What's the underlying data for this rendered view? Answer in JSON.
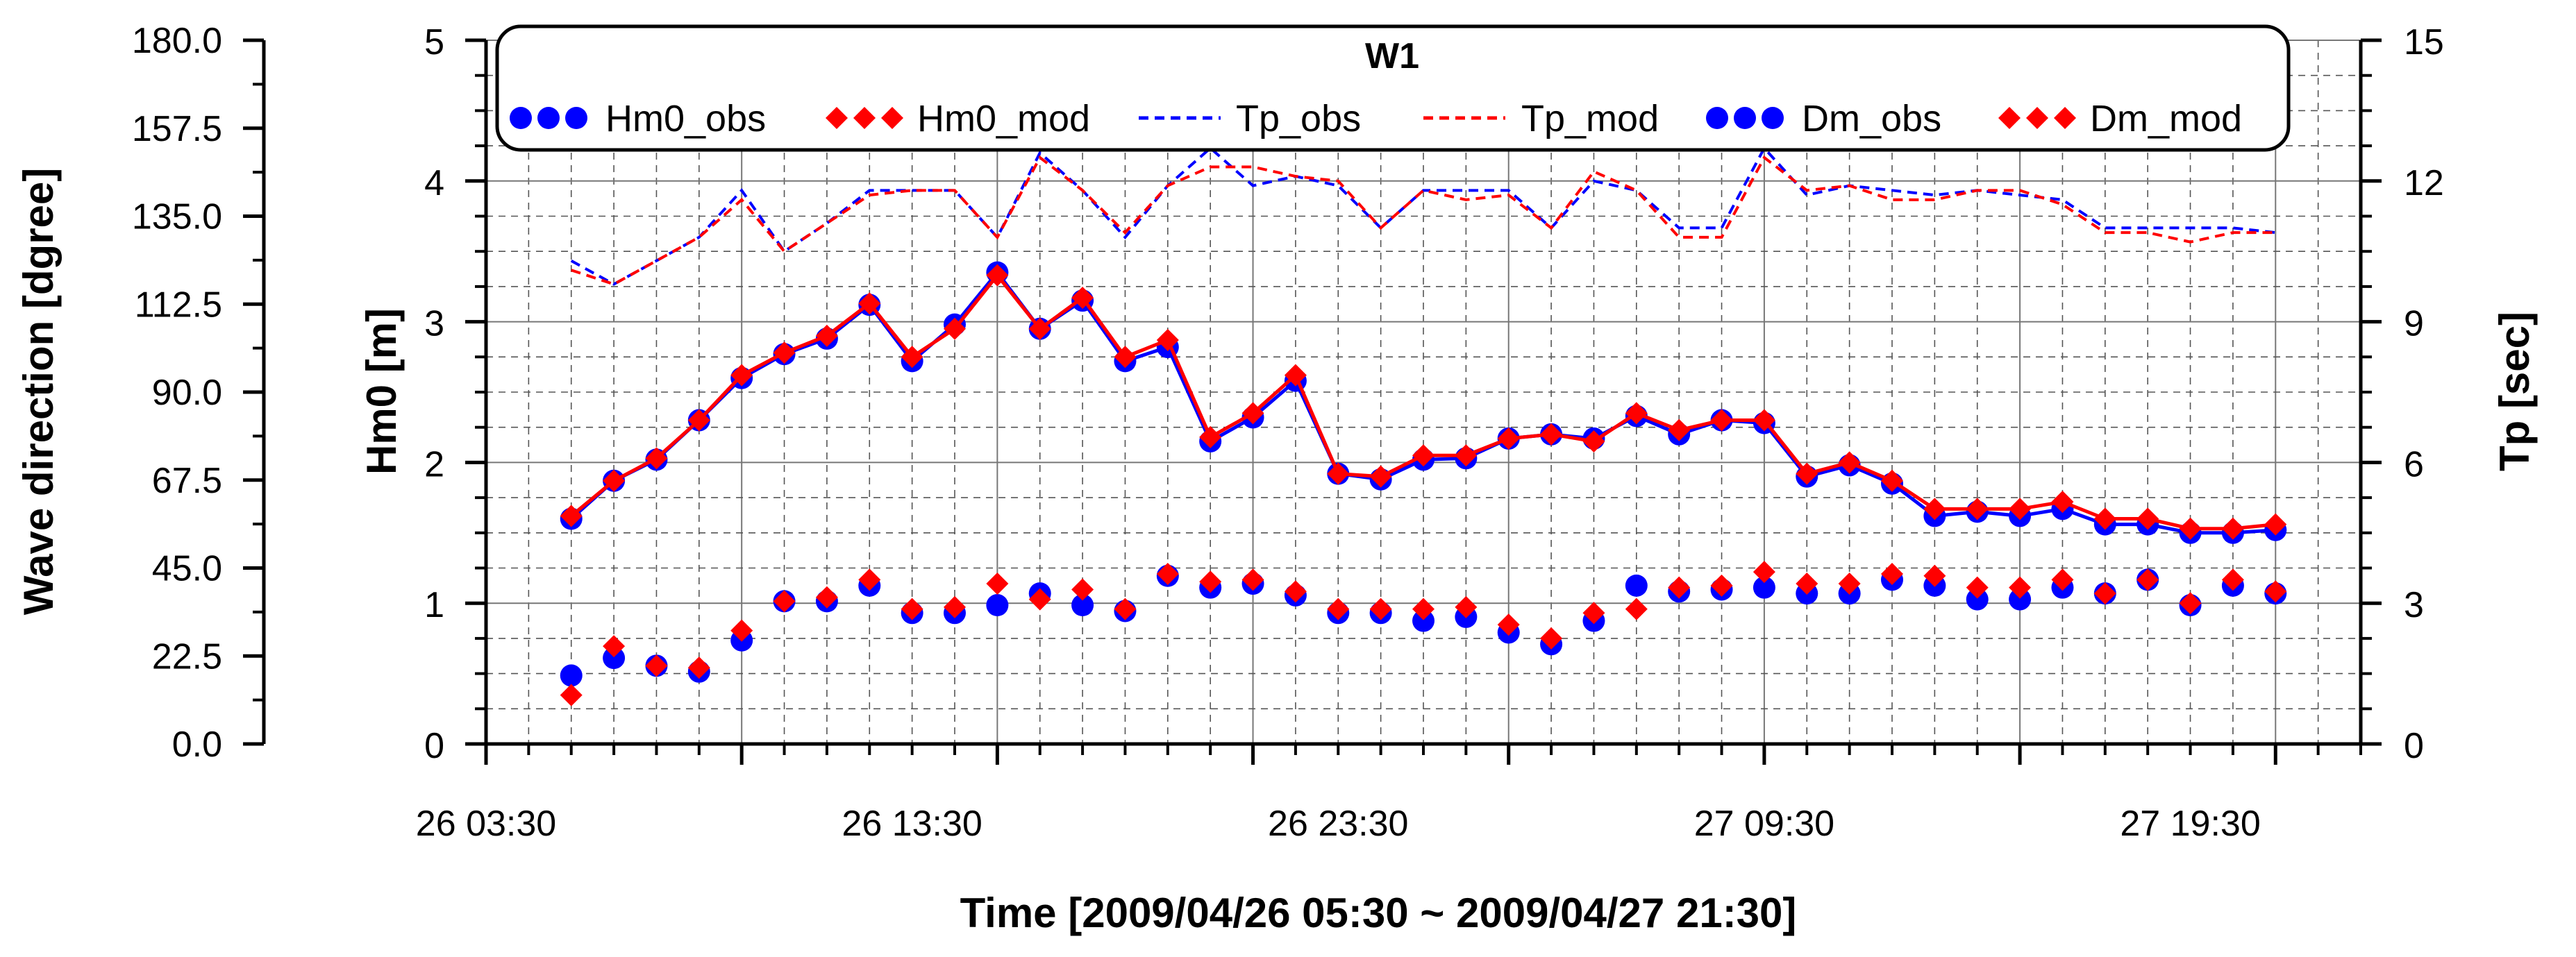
{
  "chart_data": {
    "type": "line",
    "title": "W1",
    "xlabel": "Time [2009/04/26 05:30 ~ 2009/04/27 21:30]",
    "ylabel_left_outer": "Wave direction [dgree]",
    "ylabel_left": "Hm0 [m]",
    "ylabel_right": "Tp [sec]",
    "x_tick_labels": [
      "26 03:30",
      "26 13:30",
      "26 23:30",
      "27 09:30",
      "27 19:30"
    ],
    "x_times": [
      "26 05:30",
      "26 06:30",
      "26 07:30",
      "26 08:30",
      "26 09:30",
      "26 10:30",
      "26 11:30",
      "26 12:30",
      "26 13:30",
      "26 14:30",
      "26 15:30",
      "26 16:30",
      "26 17:30",
      "26 18:30",
      "26 19:30",
      "26 20:30",
      "26 21:30",
      "26 22:30",
      "26 23:30",
      "27 00:30",
      "27 01:30",
      "27 02:30",
      "27 03:30",
      "27 04:30",
      "27 05:30",
      "27 06:30",
      "27 07:30",
      "27 08:30",
      "27 09:30",
      "27 10:30",
      "27 11:30",
      "27 12:30",
      "27 13:30",
      "27 14:30",
      "27 15:30",
      "27 16:30",
      "27 17:30",
      "27 18:30",
      "27 19:30",
      "27 20:30",
      "27 21:30"
    ],
    "xlim_hours_from_tick0": [
      0,
      44
    ],
    "first_point_hour": 2,
    "hm0_ylim": [
      0,
      5
    ],
    "hm0_ticks": [
      "0",
      "1",
      "2",
      "3",
      "4",
      "5"
    ],
    "tp_ylim": [
      0,
      15
    ],
    "tp_ticks": [
      "0",
      "3",
      "6",
      "9",
      "12",
      "15"
    ],
    "dir_ylim": [
      0,
      180
    ],
    "dir_ticks": [
      "0.0",
      "22.5",
      "45.0",
      "67.5",
      "90.0",
      "112.5",
      "135.0",
      "157.5",
      "180.0"
    ],
    "grid": true,
    "legend_position": "top",
    "series": [
      {
        "name": "Hm0_obs",
        "axis": "hm0",
        "style": "line-circle",
        "color": "#0000ff",
        "values": [
          1.6,
          1.87,
          2.02,
          2.3,
          2.6,
          2.77,
          2.88,
          3.12,
          2.72,
          2.98,
          3.35,
          2.95,
          3.15,
          2.72,
          2.82,
          2.15,
          2.32,
          2.58,
          1.92,
          1.88,
          2.02,
          2.03,
          2.17,
          2.2,
          2.17,
          2.33,
          2.2,
          2.3,
          2.28,
          1.9,
          1.98,
          1.85,
          1.62,
          1.65,
          1.62,
          1.67,
          1.56,
          1.56,
          1.5,
          1.5,
          1.52
        ]
      },
      {
        "name": "Hm0_mod",
        "axis": "hm0",
        "style": "line-diamond",
        "color": "#ff0000",
        "values": [
          1.62,
          1.87,
          2.03,
          2.3,
          2.62,
          2.78,
          2.9,
          3.13,
          2.75,
          2.95,
          3.33,
          2.95,
          3.17,
          2.75,
          2.87,
          2.18,
          2.35,
          2.62,
          1.92,
          1.9,
          2.05,
          2.05,
          2.17,
          2.2,
          2.15,
          2.35,
          2.23,
          2.3,
          2.3,
          1.92,
          2.0,
          1.87,
          1.67,
          1.67,
          1.67,
          1.72,
          1.6,
          1.6,
          1.53,
          1.53,
          1.56
        ]
      },
      {
        "name": "Tp_obs",
        "axis": "tp",
        "style": "dashed",
        "color": "#0000ff",
        "values": [
          10.3,
          9.8,
          10.3,
          10.8,
          11.8,
          10.5,
          11.1,
          11.8,
          11.8,
          11.8,
          10.8,
          12.6,
          11.8,
          10.8,
          11.9,
          12.7,
          11.9,
          12.1,
          11.9,
          11.0,
          11.8,
          11.8,
          11.8,
          11.0,
          12.0,
          11.8,
          11.0,
          11.0,
          12.7,
          11.7,
          11.9,
          11.8,
          11.7,
          11.8,
          11.7,
          11.6,
          11.0,
          11.0,
          11.0,
          11.0,
          10.9
        ]
      },
      {
        "name": "Tp_mod",
        "axis": "tp",
        "style": "dashed",
        "color": "#ff0000",
        "values": [
          10.1,
          9.8,
          10.3,
          10.8,
          11.6,
          10.5,
          11.1,
          11.7,
          11.8,
          11.8,
          10.8,
          12.5,
          11.8,
          10.9,
          11.9,
          12.3,
          12.3,
          12.1,
          12.0,
          11.0,
          11.8,
          11.6,
          11.7,
          11.0,
          12.2,
          11.8,
          10.8,
          10.8,
          12.5,
          11.8,
          11.9,
          11.6,
          11.6,
          11.8,
          11.8,
          11.5,
          10.9,
          10.9,
          10.7,
          10.9,
          10.9
        ]
      },
      {
        "name": "Dm_obs",
        "axis": "dir",
        "style": "circle",
        "color": "#0000ff",
        "values": [
          17.5,
          22,
          20,
          18.5,
          26.5,
          36.5,
          36.5,
          40.5,
          33.5,
          33.5,
          35.5,
          38.5,
          35.5,
          34,
          43,
          40,
          41,
          38,
          33.5,
          33.5,
          31.5,
          32.5,
          28.5,
          25.5,
          31.5,
          40.5,
          39,
          39.5,
          40,
          38.5,
          38.5,
          42,
          40.5,
          37,
          37,
          40,
          38.5,
          42,
          35.5,
          40.5,
          38.5
        ]
      },
      {
        "name": "Dm_mod",
        "axis": "dir",
        "style": "diamond",
        "color": "#ff0000",
        "values": [
          12.5,
          25,
          20,
          19.5,
          29,
          36.5,
          37.5,
          42,
          34.5,
          35,
          41,
          37,
          39.5,
          34.5,
          43.5,
          41.5,
          42,
          39,
          34.5,
          34.5,
          34.5,
          35,
          30.5,
          27,
          33.5,
          34.5,
          40,
          40.5,
          44,
          41,
          41,
          43.5,
          43,
          40,
          40,
          42,
          38.5,
          42,
          36,
          42,
          39
        ]
      }
    ]
  }
}
